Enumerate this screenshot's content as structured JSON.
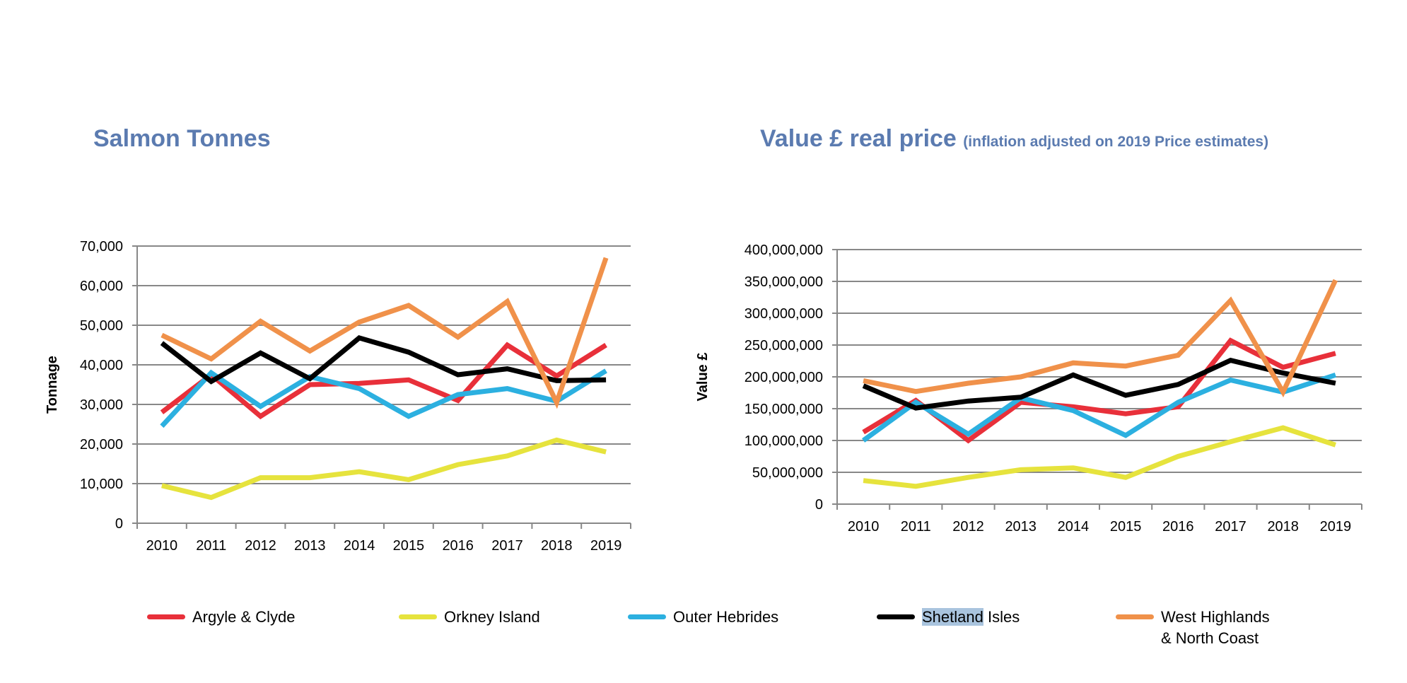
{
  "titles": {
    "left": "Salmon Tonnes",
    "right_main": "Value £ real price",
    "right_sub": "(inflation adjusted on 2019 Price estimates)"
  },
  "legend": [
    {
      "label": "Argyle & Clyde",
      "color": "#e8303a"
    },
    {
      "label": "Orkney Island",
      "color": "#e6e33d"
    },
    {
      "label": "Outer Hebrides",
      "color": "#2cb0e0"
    },
    {
      "label_highlight": "Shetland",
      "label_rest": " Isles",
      "color": "#000000"
    },
    {
      "label_line1": "West Highlands",
      "label_line2": "& North Coast",
      "color": "#f0914a"
    }
  ],
  "chart_data": [
    {
      "type": "line",
      "title": "Salmon Tonnes",
      "ylabel": "Tonnage",
      "xlabel": "",
      "x": [
        "2010",
        "2011",
        "2012",
        "2013",
        "2014",
        "2015",
        "2016",
        "2017",
        "2018",
        "2019"
      ],
      "ylim": [
        0,
        70000
      ],
      "yticks": [
        "0",
        "10,000",
        "20,000",
        "30,000",
        "40,000",
        "50,000",
        "60,000",
        "70,000"
      ],
      "grid": true,
      "legend_position": "bottom",
      "series": [
        {
          "name": "Argyle & Clyde",
          "color": "#e8303a",
          "values": [
            28000,
            37500,
            27000,
            35000,
            35300,
            36200,
            31000,
            45000,
            37200,
            45000
          ]
        },
        {
          "name": "Orkney Island",
          "color": "#e6e33d",
          "values": [
            9500,
            6500,
            11500,
            11500,
            13000,
            11000,
            14800,
            17000,
            21000,
            18000
          ]
        },
        {
          "name": "Outer Hebrides",
          "color": "#2cb0e0",
          "values": [
            24500,
            38000,
            29500,
            37000,
            34000,
            27000,
            32500,
            34000,
            30800,
            38500
          ]
        },
        {
          "name": "Shetland Isles",
          "color": "#000000",
          "values": [
            45500,
            35800,
            43000,
            36500,
            46800,
            43200,
            37500,
            39000,
            36000,
            36200
          ]
        },
        {
          "name": "West Highlands & North Coast",
          "color": "#f0914a",
          "values": [
            47500,
            41500,
            51000,
            43500,
            50800,
            55000,
            47000,
            56000,
            30500,
            67000
          ]
        }
      ]
    },
    {
      "type": "line",
      "title": "Value £ real price (inflation adjusted on 2019 Price estimates)",
      "ylabel": "Value £",
      "xlabel": "",
      "x": [
        "2010",
        "2011",
        "2012",
        "2013",
        "2014",
        "2015",
        "2016",
        "2017",
        "2018",
        "2019"
      ],
      "ylim": [
        0,
        400000000
      ],
      "yticks": [
        "0",
        "50,000,000",
        "100,000,000",
        "150,000,000",
        "200,000,000",
        "250,000,000",
        "300,000,000",
        "350,000,000",
        "400,000,000"
      ],
      "grid": true,
      "legend_position": "bottom",
      "series": [
        {
          "name": "Argyle & Clyde",
          "color": "#e8303a",
          "values": [
            113000000,
            163000000,
            100000000,
            160000000,
            153000000,
            142000000,
            153000000,
            257000000,
            215000000,
            237000000
          ]
        },
        {
          "name": "Orkney Island",
          "color": "#e6e33d",
          "values": [
            37000000,
            28000000,
            42000000,
            54000000,
            57000000,
            42000000,
            75000000,
            98000000,
            120000000,
            93000000
          ]
        },
        {
          "name": "Outer Hebrides",
          "color": "#2cb0e0",
          "values": [
            100000000,
            160000000,
            110000000,
            167000000,
            147000000,
            108000000,
            160000000,
            195000000,
            176000000,
            203000000
          ]
        },
        {
          "name": "Shetland Isles",
          "color": "#000000",
          "values": [
            186000000,
            151000000,
            162000000,
            168000000,
            203000000,
            171000000,
            188000000,
            226000000,
            206000000,
            190000000
          ]
        },
        {
          "name": "West Highlands & North Coast",
          "color": "#f0914a",
          "values": [
            194000000,
            177000000,
            190000000,
            200000000,
            222000000,
            217000000,
            234000000,
            320000000,
            176000000,
            352000000
          ]
        }
      ]
    }
  ]
}
